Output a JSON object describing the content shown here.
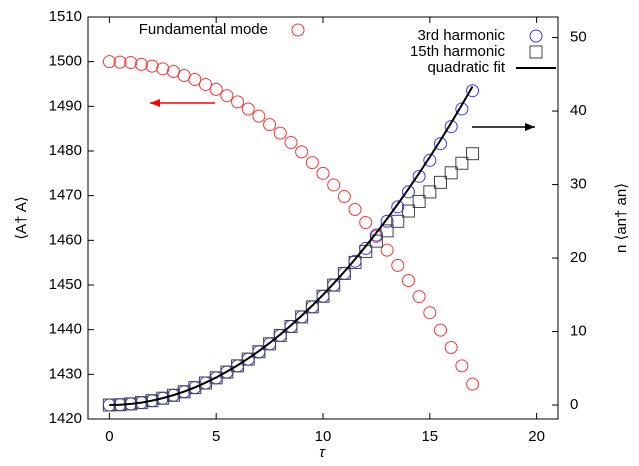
{
  "chart_data": {
    "type": "scatter",
    "xlabel": "τ",
    "ylabel": "⟨A† A⟩",
    "y2label": "n ⟨an† an⟩",
    "x": [
      0,
      0.5,
      1,
      1.5,
      2,
      2.5,
      3,
      3.5,
      4,
      4.5,
      5,
      5.5,
      6,
      6.5,
      7,
      7.5,
      8,
      8.5,
      9,
      9.5,
      10,
      10.5,
      11,
      11.5,
      12,
      12.5,
      13,
      13.5,
      14,
      14.5,
      15,
      15.5,
      16,
      16.5,
      17
    ],
    "xlim": [
      -1,
      21
    ],
    "xticks": [
      0,
      5,
      10,
      15,
      20
    ],
    "ylim": [
      1420,
      1510
    ],
    "yticks": [
      1420,
      1430,
      1440,
      1450,
      1460,
      1470,
      1480,
      1490,
      1500,
      1510
    ],
    "y2lim": [
      -1.9,
      52.8
    ],
    "y2ticks": [
      0,
      10,
      20,
      30,
      40,
      50
    ],
    "series": [
      {
        "name": "Fundamental mode",
        "color": "#ff3333",
        "marker": "circle",
        "axis": "y",
        "values": [
          1500,
          1499.9,
          1499.8,
          1499.4,
          1499,
          1498.4,
          1497.8,
          1496.9,
          1496,
          1494.9,
          1493.8,
          1492.4,
          1491,
          1489.4,
          1487.8,
          1485.9,
          1484,
          1481.9,
          1479.8,
          1477.4,
          1475,
          1472.4,
          1469.8,
          1466.9,
          1464,
          1460.9,
          1457.8,
          1454.4,
          1451,
          1447.4,
          1443.8,
          1439.9,
          1436,
          1431.9,
          1427.8
        ]
      },
      {
        "name": "3rd harmonic",
        "color": "#3333ff",
        "marker": "circle",
        "axis": "y2",
        "values": [
          0,
          0.04,
          0.15,
          0.33,
          0.59,
          0.93,
          1.33,
          1.81,
          2.37,
          3,
          3.7,
          4.48,
          5.33,
          6.25,
          7.25,
          8.33,
          9.47,
          10.69,
          11.99,
          13.36,
          14.8,
          16.32,
          17.91,
          19.57,
          21.31,
          23.13,
          25.01,
          26.97,
          29.01,
          31.12,
          33.3,
          35.56,
          37.89,
          40.29,
          42.77
        ]
      },
      {
        "name": "15th harmonic",
        "color": "#444444",
        "marker": "square",
        "axis": "y2",
        "values": [
          0,
          0.04,
          0.15,
          0.33,
          0.59,
          0.93,
          1.33,
          1.81,
          2.37,
          3,
          3.7,
          4.48,
          5.33,
          6.25,
          7.25,
          8.33,
          9.47,
          10.69,
          11.99,
          13.36,
          14.8,
          16.32,
          17.91,
          19.4,
          20.9,
          22.3,
          23.7,
          25,
          26.4,
          27.7,
          29,
          30.3,
          31.6,
          32.9,
          34.2
        ]
      },
      {
        "name": "quadratic fit",
        "color": "#000000",
        "marker": "line",
        "axis": "y2",
        "values": [
          0,
          0.04,
          0.15,
          0.33,
          0.6,
          0.94,
          1.35,
          1.84,
          2.4,
          3.04,
          3.75,
          4.54,
          5.4,
          6.34,
          7.35,
          8.44,
          9.6,
          10.84,
          12.15,
          13.54,
          15,
          16.54,
          18.15,
          19.84,
          21.6,
          23.44,
          25.35,
          27.34,
          29.4,
          31.54,
          33.75,
          36.04,
          38.4,
          40.84,
          43.35
        ]
      }
    ]
  }
}
